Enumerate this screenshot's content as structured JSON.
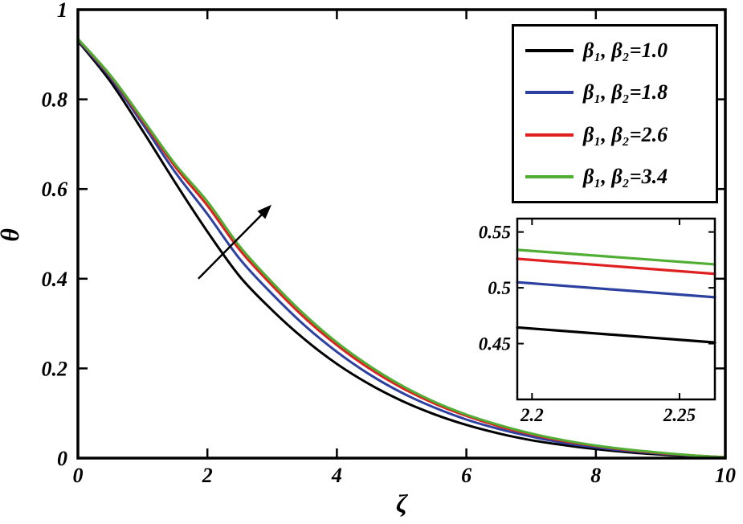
{
  "figure": {
    "kind": "line-plot-with-inset"
  },
  "legend": {
    "items": [
      {
        "label": "β₁, β₂=1.0"
      },
      {
        "label": "β₁, β₂=1.8"
      },
      {
        "label": "β₁, β₂=2.6"
      },
      {
        "label": "β₁, β₂=3.4"
      }
    ]
  },
  "chart_data": {
    "type": "line",
    "title": "",
    "xlabel": "ζ",
    "ylabel": "θ",
    "xlim": [
      0,
      10
    ],
    "ylim": [
      0,
      1
    ],
    "grid": false,
    "legend_position": "top-right",
    "xticks": [
      0,
      2,
      4,
      6,
      8,
      10
    ],
    "xtick_labels": [
      "0",
      "2",
      "4",
      "6",
      "8",
      "10"
    ],
    "yticks": [
      0,
      0.2,
      0.4,
      0.6,
      0.8,
      1
    ],
    "ytick_labels": [
      "0",
      "0.2",
      "0.4",
      "0.6",
      "0.8",
      "1"
    ],
    "x": [
      0,
      0.5,
      1,
      1.5,
      2,
      2.5,
      3,
      3.5,
      4,
      4.5,
      5,
      5.5,
      6,
      6.5,
      7,
      7.5,
      8,
      8.5,
      9,
      9.5,
      10
    ],
    "series": [
      {
        "name": "β₁, β₂=1.0",
        "color": "#000000",
        "values": [
          0.93,
          0.84,
          0.73,
          0.615,
          0.505,
          0.405,
          0.33,
          0.265,
          0.21,
          0.165,
          0.128,
          0.098,
          0.074,
          0.055,
          0.04,
          0.029,
          0.02,
          0.013,
          0.008,
          0.004,
          0.001
        ]
      },
      {
        "name": "β₁, β₂=1.8",
        "color": "#2c41a0",
        "values": [
          0.932,
          0.848,
          0.745,
          0.638,
          0.544,
          0.444,
          0.366,
          0.296,
          0.237,
          0.187,
          0.146,
          0.113,
          0.086,
          0.065,
          0.048,
          0.034,
          0.024,
          0.016,
          0.01,
          0.005,
          0.001
        ]
      },
      {
        "name": "β₁, β₂=2.6",
        "color": "#e02020",
        "values": [
          0.934,
          0.852,
          0.752,
          0.65,
          0.563,
          0.464,
          0.385,
          0.313,
          0.252,
          0.2,
          0.157,
          0.122,
          0.094,
          0.071,
          0.053,
          0.038,
          0.027,
          0.018,
          0.011,
          0.006,
          0.002
        ]
      },
      {
        "name": "β₁, β₂=3.4",
        "color": "#4fae33",
        "values": [
          0.935,
          0.854,
          0.756,
          0.656,
          0.572,
          0.472,
          0.392,
          0.32,
          0.258,
          0.206,
          0.162,
          0.126,
          0.097,
          0.074,
          0.055,
          0.04,
          0.028,
          0.019,
          0.012,
          0.006,
          0.002
        ]
      }
    ],
    "annotation_arrow": {
      "x1": 1.86,
      "y1": 0.4,
      "x2": 2.99,
      "y2": 0.565
    },
    "inset": {
      "xlim": [
        2.195,
        2.262
      ],
      "ylim": [
        0.4,
        0.562
      ],
      "xticks": [
        2.2,
        2.25
      ],
      "xtick_labels": [
        "2.2",
        "2.25"
      ],
      "yticks": [
        0.45,
        0.5,
        0.55
      ],
      "ytick_labels": [
        "0.45",
        "0.5",
        "0.55"
      ],
      "series": [
        {
          "name": "β₁, β₂=1.0",
          "color": "#000000",
          "x": [
            2.195,
            2.262
          ],
          "values": [
            0.4645,
            0.451
          ]
        },
        {
          "name": "β₁, β₂=1.8",
          "color": "#2c41a0",
          "x": [
            2.195,
            2.262
          ],
          "values": [
            0.505,
            0.4915
          ]
        },
        {
          "name": "β₁, β₂=2.6",
          "color": "#e02020",
          "x": [
            2.195,
            2.262
          ],
          "values": [
            0.526,
            0.5125
          ]
        },
        {
          "name": "β₁, β₂=3.4",
          "color": "#4fae33",
          "x": [
            2.195,
            2.262
          ],
          "values": [
            0.534,
            0.521
          ]
        }
      ]
    }
  }
}
